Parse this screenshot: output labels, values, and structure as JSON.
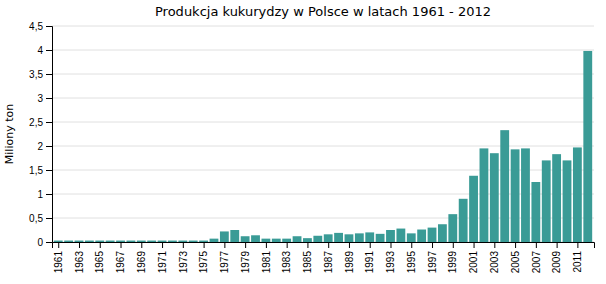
{
  "chart_data": {
    "type": "bar",
    "title": "Produkcja kukurydzy w Polsce w latach 1961 - 2012",
    "ylabel": "Miliony ton",
    "x": [
      1961,
      1962,
      1963,
      1964,
      1965,
      1966,
      1967,
      1968,
      1969,
      1970,
      1971,
      1972,
      1973,
      1974,
      1975,
      1976,
      1977,
      1978,
      1979,
      1980,
      1981,
      1982,
      1983,
      1984,
      1985,
      1986,
      1987,
      1988,
      1989,
      1990,
      1991,
      1992,
      1993,
      1994,
      1995,
      1996,
      1997,
      1998,
      1999,
      2000,
      2001,
      2002,
      2003,
      2004,
      2005,
      2006,
      2007,
      2008,
      2009,
      2010,
      2011,
      2012
    ],
    "values": [
      0.03,
      0.03,
      0.03,
      0.03,
      0.03,
      0.03,
      0.03,
      0.03,
      0.03,
      0.03,
      0.03,
      0.03,
      0.03,
      0.03,
      0.03,
      0.07,
      0.22,
      0.25,
      0.12,
      0.14,
      0.07,
      0.07,
      0.07,
      0.12,
      0.08,
      0.13,
      0.16,
      0.19,
      0.16,
      0.18,
      0.2,
      0.17,
      0.25,
      0.28,
      0.18,
      0.26,
      0.3,
      0.37,
      0.58,
      0.9,
      1.38,
      1.95,
      1.85,
      2.33,
      1.93,
      1.95,
      1.25,
      1.7,
      1.83,
      1.7,
      1.97,
      3.98
    ],
    "color": "#3A9B96",
    "xlim": [
      1960.4,
      2012.6
    ],
    "xticks": [
      1961,
      1963,
      1965,
      1967,
      1969,
      1971,
      1973,
      1975,
      1977,
      1979,
      1981,
      1983,
      1985,
      1987,
      1989,
      1991,
      1993,
      1995,
      1997,
      1999,
      2001,
      2003,
      2005,
      2007,
      2009,
      2011
    ],
    "ylim": [
      0,
      4.5
    ],
    "yticks": [
      0,
      {
        "value": 0.5,
        "label": "0,5"
      },
      1,
      {
        "value": 1.5,
        "label": "1,5"
      },
      2,
      {
        "value": 2.5,
        "label": "2,5"
      },
      3,
      {
        "value": 3.5,
        "label": "3,5"
      },
      4,
      {
        "value": 4.5,
        "label": "4,5"
      }
    ],
    "grid": true
  }
}
